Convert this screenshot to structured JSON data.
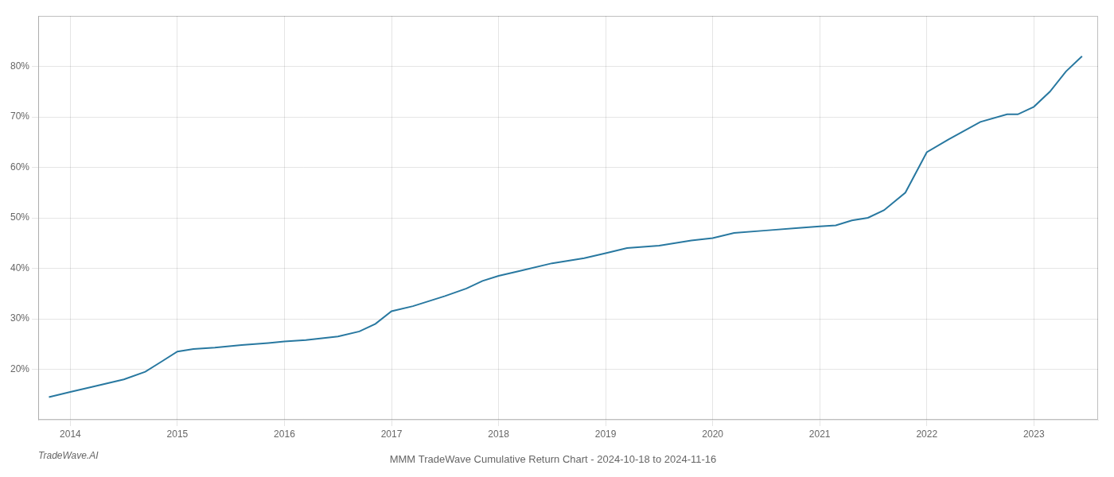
{
  "chart_data": {
    "type": "line",
    "title": "MMM TradeWave Cumulative Return Chart - 2024-10-18 to 2024-11-16",
    "annotations": [
      "TradeWave.AI"
    ],
    "color": "#2878a0",
    "x": [
      2013.8,
      2014.0,
      2014.2,
      2014.5,
      2014.7,
      2014.85,
      2015.0,
      2015.15,
      2015.35,
      2015.6,
      2015.85,
      2016.0,
      2016.2,
      2016.5,
      2016.7,
      2016.85,
      2017.0,
      2017.2,
      2017.5,
      2017.7,
      2017.85,
      2018.0,
      2018.2,
      2018.5,
      2018.8,
      2019.0,
      2019.2,
      2019.5,
      2019.8,
      2020.0,
      2020.2,
      2020.5,
      2020.8,
      2021.0,
      2021.15,
      2021.3,
      2021.45,
      2021.6,
      2021.8,
      2022.0,
      2022.2,
      2022.5,
      2022.75,
      2022.85,
      2023.0,
      2023.15,
      2023.3,
      2023.45
    ],
    "values": [
      14.5,
      15.5,
      16.5,
      18.0,
      19.5,
      21.5,
      23.5,
      24.0,
      24.3,
      24.8,
      25.2,
      25.5,
      25.8,
      26.5,
      27.5,
      29.0,
      31.5,
      32.5,
      34.5,
      36.0,
      37.5,
      38.5,
      39.5,
      41.0,
      42.0,
      43.0,
      44.0,
      44.5,
      45.5,
      46.0,
      47.0,
      47.5,
      48.0,
      48.3,
      48.5,
      49.5,
      50.0,
      51.5,
      55.0,
      63.0,
      65.5,
      69.0,
      70.5,
      70.5,
      72.0,
      75.0,
      79.0,
      82.0
    ],
    "xlim": [
      2013.7,
      2023.6
    ],
    "xticks": [
      2014,
      2015,
      2016,
      2017,
      2018,
      2019,
      2020,
      2021,
      2022,
      2023
    ],
    "ylim": [
      10,
      90
    ],
    "yticks": [
      {
        "value": 20,
        "label": "20%"
      },
      {
        "value": 30,
        "label": "30%"
      },
      {
        "value": 40,
        "label": "40%"
      },
      {
        "value": 50,
        "label": "50%"
      },
      {
        "value": 60,
        "label": "60%"
      },
      {
        "value": 70,
        "label": "70%"
      },
      {
        "value": 80,
        "label": "80%"
      }
    ],
    "grid": true
  }
}
